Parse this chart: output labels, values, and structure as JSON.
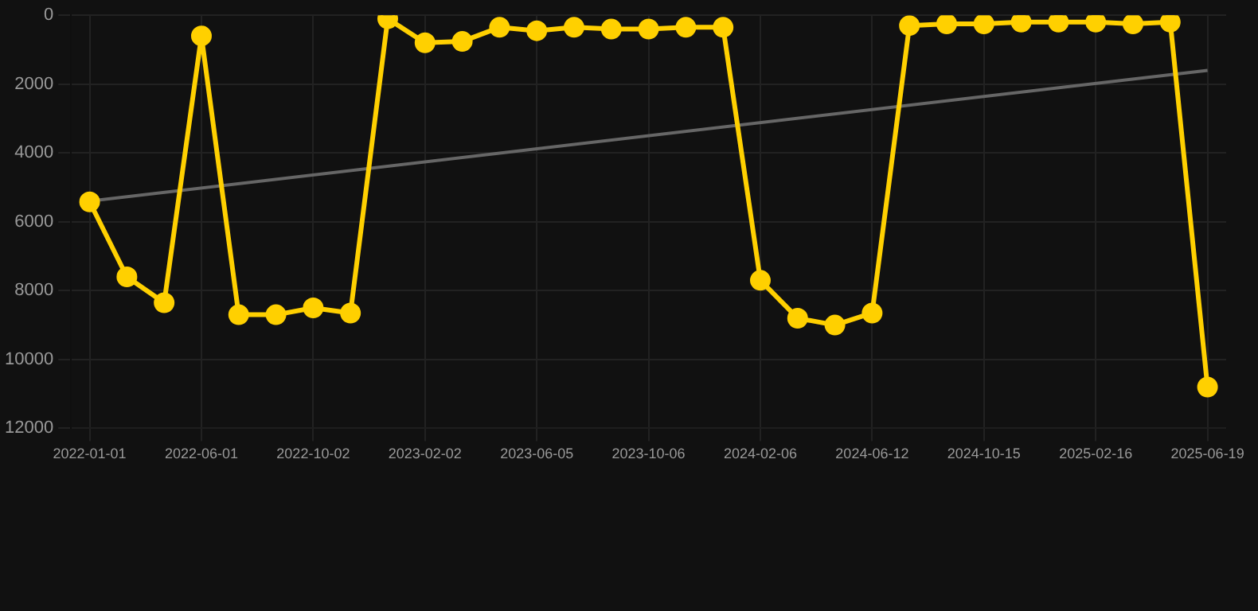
{
  "chart_data": {
    "type": "line",
    "categories": [
      "2022-01-01",
      null,
      null,
      "2022-06-01",
      null,
      null,
      "2022-10-02",
      null,
      null,
      "2023-02-02",
      null,
      null,
      "2023-06-05",
      null,
      null,
      "2023-10-06",
      null,
      null,
      "2024-02-06",
      null,
      null,
      "2024-06-12",
      null,
      null,
      "2024-10-15",
      null,
      null,
      "2025-02-16",
      null,
      null,
      "2025-06-19"
    ],
    "series": [
      {
        "color": "#ffd000",
        "values": [
          5420,
          7600,
          8350,
          600,
          8700,
          8700,
          8500,
          8650,
          100,
          800,
          760,
          350,
          450,
          350,
          400,
          400,
          350,
          350,
          7700,
          8800,
          9000,
          8650,
          300,
          250,
          250,
          200,
          200,
          200,
          250,
          200,
          10800
        ]
      },
      {
        "color": "#666666",
        "marker": "none",
        "values": [
          5400,
          null,
          null,
          null,
          null,
          null,
          null,
          null,
          null,
          null,
          null,
          null,
          null,
          null,
          null,
          null,
          null,
          null,
          null,
          null,
          null,
          null,
          null,
          null,
          null,
          null,
          null,
          null,
          null,
          null,
          1600
        ]
      }
    ],
    "ylim": [
      12000,
      0
    ],
    "yticks": [
      0,
      2000,
      4000,
      6000,
      8000,
      10000,
      12000
    ],
    "grid": true,
    "marker": "circle",
    "legend": false
  }
}
